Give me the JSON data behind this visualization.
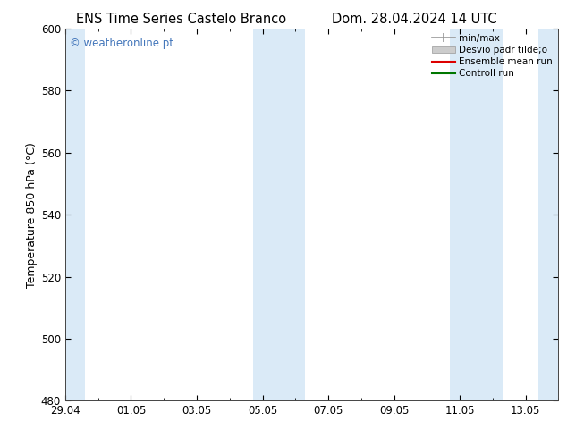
{
  "title_left": "ENS Time Series Castelo Branco",
  "title_right": "Dom. 28.04.2024 14 UTC",
  "ylabel": "Temperature 850 hPa (°C)",
  "ylim": [
    480,
    600
  ],
  "yticks": [
    480,
    500,
    520,
    540,
    560,
    580,
    600
  ],
  "xtick_labels": [
    "29.04",
    "01.05",
    "03.05",
    "05.05",
    "07.05",
    "09.05",
    "11.05",
    "13.05"
  ],
  "xtick_positions": [
    0,
    2,
    4,
    6,
    8,
    10,
    12,
    14
  ],
  "xlim": [
    0,
    15
  ],
  "shaded_bands": [
    {
      "x_start": 0.0,
      "x_end": 0.6
    },
    {
      "x_start": 5.7,
      "x_end": 7.3
    },
    {
      "x_start": 11.7,
      "x_end": 13.3
    },
    {
      "x_start": 14.4,
      "x_end": 15.0
    }
  ],
  "shade_color": "#daeaf7",
  "watermark_text": "© weatheronline.pt",
  "watermark_color": "#4477bb",
  "legend_entries": [
    {
      "label": "min/max",
      "color": "#aaaaaa",
      "lw": 1.2
    },
    {
      "label": "Desvio padr tilde;o",
      "color": "#cccccc",
      "lw": 8
    },
    {
      "label": "Ensemble mean run",
      "color": "#dd0000",
      "lw": 1.5
    },
    {
      "label": "Controll run",
      "color": "#007700",
      "lw": 1.5
    }
  ],
  "bg_color": "#ffffff",
  "title_fontsize": 10.5,
  "label_fontsize": 9,
  "tick_fontsize": 8.5
}
